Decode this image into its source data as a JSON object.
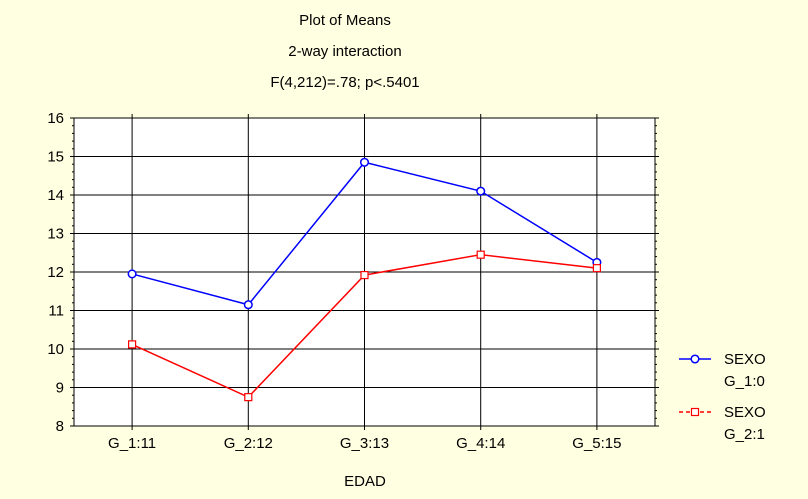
{
  "chart_data": {
    "type": "line",
    "title": "Plot of Means",
    "subtitle": "2-way interaction",
    "annotation": "F(4,212)=.78; p<.5401",
    "xlabel": "EDAD",
    "ylabel": "",
    "categories": [
      "G_1:11",
      "G_2:12",
      "G_3:13",
      "G_4:14",
      "G_5:15"
    ],
    "ylim": [
      8,
      16
    ],
    "yticks": [
      8,
      9,
      10,
      11,
      12,
      13,
      14,
      15,
      16
    ],
    "grid": true,
    "legend_position": "right",
    "series": [
      {
        "name_line1": "SEXO",
        "name_line2": "G_1:0",
        "values": [
          11.95,
          11.15,
          14.85,
          14.1,
          12.25
        ],
        "color": "#0000FF",
        "marker": "circle",
        "line_style": "solid"
      },
      {
        "name_line1": "SEXO",
        "name_line2": "G_2:1",
        "values": [
          10.12,
          8.75,
          11.92,
          12.45,
          12.1
        ],
        "color": "#FF0000",
        "marker": "square",
        "line_style": "dashed"
      }
    ]
  },
  "colors": {
    "background": "#FFFFE1",
    "plot_area": "#FFFFFF",
    "grid": "#000000"
  }
}
